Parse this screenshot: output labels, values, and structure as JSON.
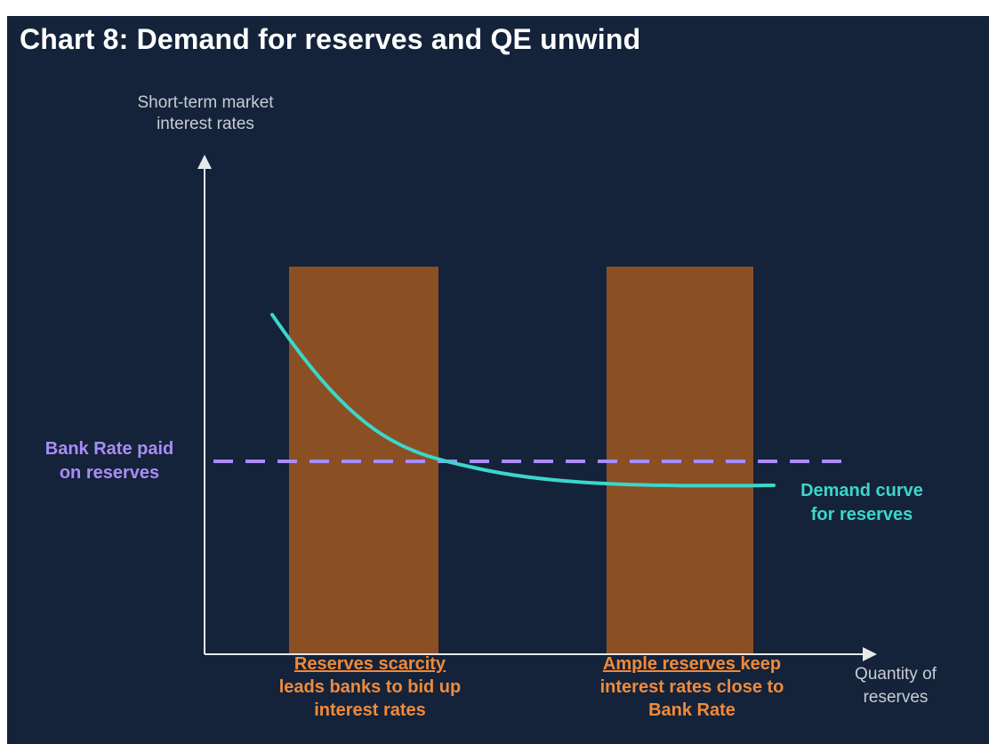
{
  "title": "Chart 8: Demand for reserves and QE unwind",
  "axes": {
    "y_label_line1": "Short-term market",
    "y_label_line2": "interest rates",
    "x_label_line1": "Quantity of",
    "x_label_line2": "reserves"
  },
  "bank_rate": {
    "line1": "Bank Rate paid",
    "line2": "on reserves",
    "color": "#a98cf6"
  },
  "demand_curve": {
    "line1": "Demand curve",
    "line2": "for reserves",
    "color": "#3cd6cb"
  },
  "regions": [
    {
      "highlight": "Reserves scarcity",
      "rest": "",
      "line2": "leads banks to bid up",
      "line3": "interest rates",
      "color": "#8b4f24"
    },
    {
      "highlight": "Ample reserves ",
      "rest": "keep",
      "line2": "interest rates close to",
      "line3": "Bank Rate",
      "color": "#8b4f24"
    }
  ],
  "colors": {
    "background": "#14233a",
    "axis": "#e6e8ec",
    "label_orange": "#f08a3a"
  }
}
